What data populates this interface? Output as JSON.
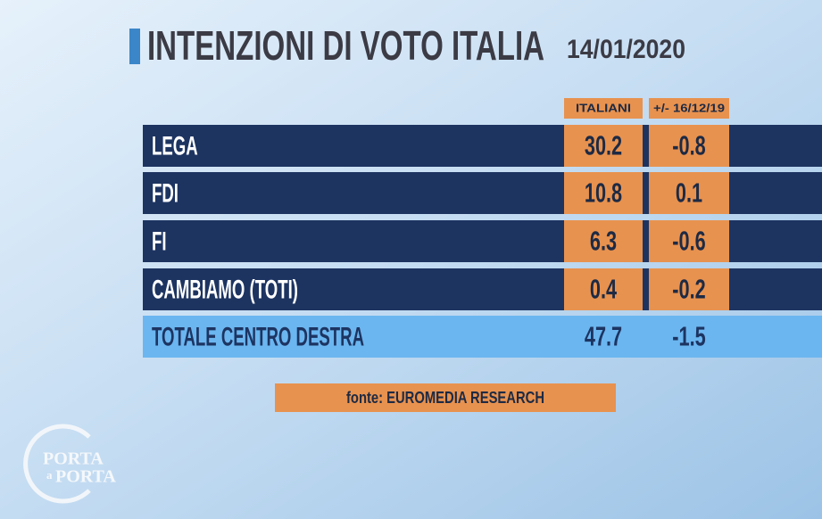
{
  "header": {
    "title": "INTENZIONI DI VOTO ITALIA",
    "date": "14/01/2020"
  },
  "table": {
    "columns": [
      "ITALIANI",
      "+/- 16/12/19"
    ],
    "rows": [
      [
        "LEGA",
        "30.2",
        "-0.8"
      ],
      [
        "FDI",
        "10.8",
        "0.1"
      ],
      [
        "FI",
        "6.3",
        "-0.6"
      ],
      [
        "CAMBIAMO (TOTI)",
        "0.4",
        "-0.2"
      ]
    ],
    "total": [
      "TOTALE CENTRO DESTRA",
      "47.7",
      "-1.5"
    ]
  },
  "source": "fonte: EUROMEDIA RESEARCH",
  "logo": {
    "line1": "PORTA",
    "line2": "a",
    "line3": "PORTA"
  }
}
